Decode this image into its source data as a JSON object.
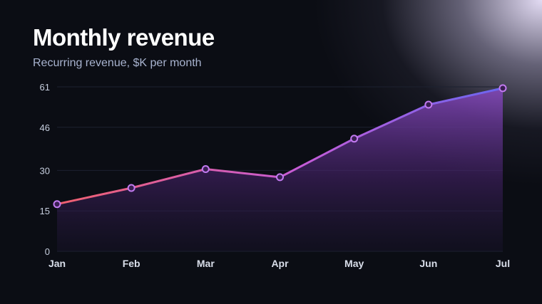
{
  "chart_data": {
    "type": "area",
    "title": "Monthly revenue",
    "subtitle": "Recurring revenue, $K per month",
    "categories": [
      "Jan",
      "Feb",
      "Mar",
      "Apr",
      "May",
      "Jun",
      "Jul"
    ],
    "values": [
      17.5,
      23.5,
      30.5,
      27.5,
      41.8,
      54.4,
      60.5
    ],
    "yticks": [
      0,
      15,
      30,
      46,
      61
    ],
    "ylim": [
      0,
      61
    ],
    "grid": true,
    "line_gradient": [
      "#f0606e",
      "#c65cd8",
      "#6a66f0"
    ],
    "area_color": "#7b3fb0",
    "marker_fill": "#3a1f52",
    "marker_stroke": "#c27af0"
  }
}
